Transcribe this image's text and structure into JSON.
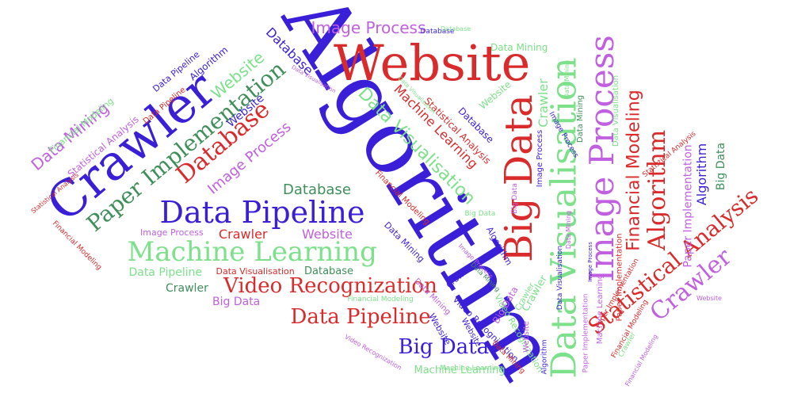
{
  "palette": {
    "purple": "#c060e0",
    "blue": "#3a1fd8",
    "green": "#7de08a",
    "red": "#d92b2b",
    "dark_green": "#3f8f5a"
  },
  "words": [
    {
      "text": "Algorithm",
      "color": "blue",
      "rotation": "diagonal"
    },
    {
      "text": "Website",
      "color": "red",
      "rotation": "horizontal"
    },
    {
      "text": "Crawler",
      "color": "blue",
      "rotation": "diagonal"
    },
    {
      "text": "Big Data",
      "color": "red",
      "rotation": "vertical"
    },
    {
      "text": "Data Visualisation",
      "color": "green",
      "rotation": "vertical"
    },
    {
      "text": "Image Process",
      "color": "purple",
      "rotation": "vertical"
    },
    {
      "text": "Data Pipeline",
      "color": "blue",
      "rotation": "horizontal"
    },
    {
      "text": "Machine Learning",
      "color": "green",
      "rotation": "horizontal"
    },
    {
      "text": "Paper Implementation",
      "color": "dark_green",
      "rotation": "diagonal"
    },
    {
      "text": "Database",
      "color": "red",
      "rotation": "diagonal"
    },
    {
      "text": "Video Recognization",
      "color": "red",
      "rotation": "horizontal"
    },
    {
      "text": "Data Pipeline",
      "color": "red",
      "rotation": "horizontal"
    },
    {
      "text": "Big Data",
      "color": "blue",
      "rotation": "horizontal"
    },
    {
      "text": "Financial Modeling",
      "color": "red",
      "rotation": "vertical"
    },
    {
      "text": "Algorithm",
      "color": "red",
      "rotation": "vertical"
    },
    {
      "text": "Statistical Analysis",
      "color": "red",
      "rotation": "diagonal"
    },
    {
      "text": "Crawler",
      "color": "purple",
      "rotation": "diagonal"
    },
    {
      "text": "Data Mining",
      "color": "purple",
      "rotation": "diagonal"
    },
    {
      "text": "Image Process",
      "color": "purple",
      "rotation": "horizontal"
    },
    {
      "text": "Website",
      "color": "green",
      "rotation": "diagonal"
    },
    {
      "text": "Database",
      "color": "dark_green",
      "rotation": "horizontal"
    },
    {
      "text": "Image Process",
      "color": "purple",
      "rotation": "diagonal"
    },
    {
      "text": "Data Visualisation",
      "color": "green",
      "rotation": "diagonal"
    },
    {
      "text": "Machine Learning",
      "color": "red",
      "rotation": "diagonal"
    },
    {
      "text": "Database",
      "color": "blue",
      "rotation": "diagonal"
    },
    {
      "text": "Website",
      "color": "purple",
      "rotation": "horizontal"
    },
    {
      "text": "Crawler",
      "color": "red",
      "rotation": "horizontal"
    },
    {
      "text": "Crawler",
      "color": "green",
      "rotation": "vertical"
    },
    {
      "text": "Algorithm",
      "color": "blue",
      "rotation": "vertical"
    },
    {
      "text": "Paper Implementation",
      "color": "purple",
      "rotation": "vertical"
    },
    {
      "text": "Big Data",
      "color": "dark_green",
      "rotation": "vertical"
    },
    {
      "text": "Statistical Analysis",
      "color": "purple",
      "rotation": "diagonal"
    },
    {
      "text": "Website",
      "color": "blue",
      "rotation": "diagonal"
    },
    {
      "text": "Database",
      "color": "dark_green",
      "rotation": "horizontal"
    },
    {
      "text": "Data Visualisation",
      "color": "red",
      "rotation": "horizontal"
    },
    {
      "text": "Data Pipeline",
      "color": "green",
      "rotation": "horizontal"
    },
    {
      "text": "Crawler",
      "color": "dark_green",
      "rotation": "horizontal"
    },
    {
      "text": "Big Data",
      "color": "purple",
      "rotation": "horizontal"
    },
    {
      "text": "Machine Learning",
      "color": "green",
      "rotation": "horizontal"
    },
    {
      "text": "Data Mining",
      "color": "green",
      "rotation": "horizontal"
    },
    {
      "text": "Image Process",
      "color": "purple",
      "rotation": "horizontal"
    },
    {
      "text": "Data Pipeline",
      "color": "blue",
      "rotation": "diagonal"
    },
    {
      "text": "Algorithm",
      "color": "blue",
      "rotation": "diagonal"
    },
    {
      "text": "Website",
      "color": "green",
      "rotation": "diagonal"
    },
    {
      "text": "Database",
      "color": "blue",
      "rotation": "diagonal"
    },
    {
      "text": "Statistical Analysis",
      "color": "red",
      "rotation": "diagonal"
    },
    {
      "text": "Financial Modeling",
      "color": "red",
      "rotation": "diagonal"
    },
    {
      "text": "Data Mining",
      "color": "blue",
      "rotation": "diagonal"
    },
    {
      "text": "Data Mining",
      "color": "purple",
      "rotation": "diagonal"
    },
    {
      "text": "Video Recognization",
      "color": "blue",
      "rotation": "diagonal"
    },
    {
      "text": "Crawler",
      "color": "blue",
      "rotation": "vertical"
    },
    {
      "text": "Image Process",
      "color": "blue",
      "rotation": "vertical"
    },
    {
      "text": "Data Mining",
      "color": "dark_green",
      "rotation": "vertical"
    },
    {
      "text": "Data Visualisation",
      "color": "green",
      "rotation": "vertical"
    },
    {
      "text": "Machine Learning",
      "color": "purple",
      "rotation": "vertical"
    },
    {
      "text": "Paper Implementation",
      "color": "red",
      "rotation": "vertical"
    },
    {
      "text": "Crawler",
      "color": "green",
      "rotation": "diagonal"
    },
    {
      "text": "Big Data",
      "color": "purple",
      "rotation": "diagonal"
    },
    {
      "text": "Financial Modeling",
      "color": "green",
      "rotation": "diagonal"
    },
    {
      "text": "Data Pipeline",
      "color": "red",
      "rotation": "diagonal"
    },
    {
      "text": "Statistical Analysis",
      "color": "red",
      "rotation": "diagonal"
    },
    {
      "text": "Financial Modeling",
      "color": "green",
      "rotation": "horizontal"
    },
    {
      "text": "Database",
      "color": "blue",
      "rotation": "horizontal"
    },
    {
      "text": "Website",
      "color": "blue",
      "rotation": "vertical"
    },
    {
      "text": "Algorithm",
      "color": "blue",
      "rotation": "diagonal"
    },
    {
      "text": "Machine Learning",
      "color": "green",
      "rotation": "horizontal"
    },
    {
      "text": "Data Mining",
      "color": "red",
      "rotation": "diagonal"
    },
    {
      "text": "Video Recognization",
      "color": "green",
      "rotation": "diagonal"
    },
    {
      "text": "Big Data",
      "color": "green",
      "rotation": "horizontal"
    },
    {
      "text": "Image Process",
      "color": "blue",
      "rotation": "diagonal"
    },
    {
      "text": "Website",
      "color": "blue",
      "rotation": "diagonal"
    },
    {
      "text": "Crawler",
      "color": "green",
      "rotation": "diagonal"
    },
    {
      "text": "Algorithm",
      "color": "blue",
      "rotation": "vertical"
    },
    {
      "text": "Big Data",
      "color": "purple",
      "rotation": "vertical"
    },
    {
      "text": "Website",
      "color": "purple",
      "rotation": "vertical"
    },
    {
      "text": "Paper Implementation",
      "color": "purple",
      "rotation": "vertical"
    },
    {
      "text": "Data Mining",
      "color": "dark_green",
      "rotation": "diagonal"
    },
    {
      "text": "Image Process",
      "color": "purple",
      "rotation": "diagonal"
    },
    {
      "text": "Video Recognization",
      "color": "purple",
      "rotation": "diagonal"
    },
    {
      "text": "Data Mining",
      "color": "purple",
      "rotation": "vertical"
    },
    {
      "text": "Data Visualisation",
      "color": "blue",
      "rotation": "vertical"
    },
    {
      "text": "Financial Modeling",
      "color": "red",
      "rotation": "diagonal"
    },
    {
      "text": "Paper Implementation",
      "color": "red",
      "rotation": "diagonal"
    },
    {
      "text": "Statistical Analysis",
      "color": "red",
      "rotation": "diagonal"
    },
    {
      "text": "Financial Modeling",
      "color": "red",
      "rotation": "diagonal"
    },
    {
      "text": "Data Visualisation",
      "color": "purple",
      "rotation": "horizontal"
    },
    {
      "text": "Image Process",
      "color": "blue",
      "rotation": "horizontal"
    },
    {
      "text": "Crawler",
      "color": "green",
      "rotation": "diagonal"
    },
    {
      "text": "Data Visualisation",
      "color": "green",
      "rotation": "diagonal"
    },
    {
      "text": "Financial Modeling",
      "color": "purple",
      "rotation": "diagonal"
    },
    {
      "text": "Website",
      "color": "purple",
      "rotation": "horizontal"
    },
    {
      "text": "Data Mining",
      "color": "green",
      "rotation": "vertical"
    },
    {
      "text": "Database",
      "color": "green",
      "rotation": "vertical"
    }
  ]
}
